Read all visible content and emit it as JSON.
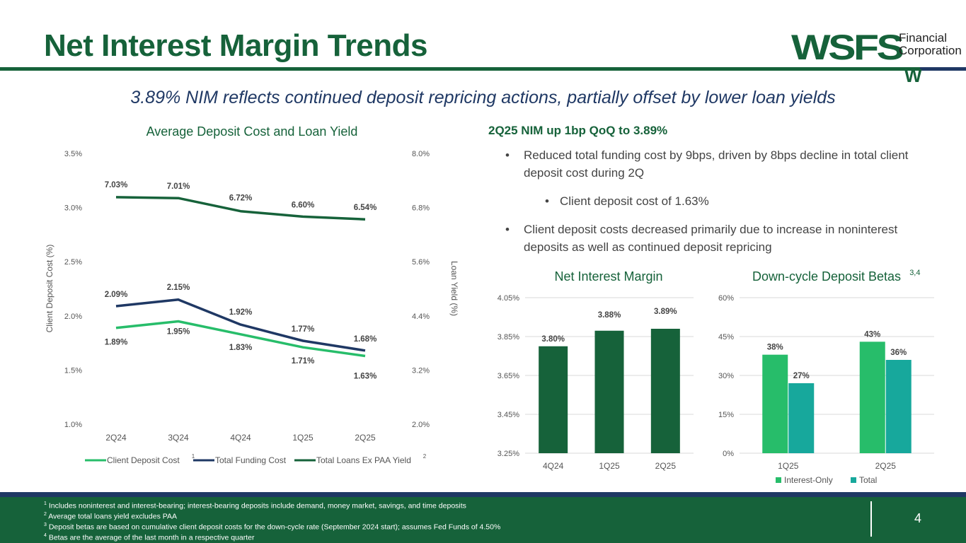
{
  "header": {
    "title": "Net Interest Margin Trends",
    "subtitle": "3.89% NIM reflects continued deposit repricing actions, partially offset by lower loan yields",
    "logo": {
      "brand": "WSFS",
      "line1": "Financial",
      "line2": "Corporation",
      "mark": "W"
    }
  },
  "colors": {
    "dark_green": "#16623a",
    "light_green": "#27bd6a",
    "navy": "#1f3864",
    "teal": "#17a89c"
  },
  "chart_data": [
    {
      "type": "line",
      "title": "Average Deposit Cost and Loan Yield",
      "categories": [
        "2Q24",
        "3Q24",
        "4Q24",
        "1Q25",
        "2Q25"
      ],
      "ylabel": "Client Deposit Cost (%)",
      "y2label": "Loan Yield (%)",
      "ylim": [
        1.0,
        3.5
      ],
      "y_ticks": [
        "1.0%",
        "1.5%",
        "2.0%",
        "2.5%",
        "3.0%",
        "3.5%"
      ],
      "y2lim": [
        2.0,
        8.0
      ],
      "y2_ticks": [
        "2.0%",
        "3.2%",
        "4.4%",
        "5.6%",
        "6.8%",
        "8.0%"
      ],
      "legend_position": "bottom",
      "series": [
        {
          "name": "Client Deposit Cost",
          "sup": "1",
          "axis": "left",
          "color": "#27bd6a",
          "values": [
            1.89,
            1.95,
            1.83,
            1.71,
            1.63
          ],
          "labels": [
            "1.89%",
            "1.95%",
            "1.83%",
            "1.71%",
            "1.63%"
          ]
        },
        {
          "name": "Total Funding Cost",
          "sup": "",
          "axis": "left",
          "color": "#1f3864",
          "values": [
            2.09,
            2.15,
            1.92,
            1.77,
            1.68
          ],
          "labels": [
            "2.09%",
            "2.15%",
            "1.92%",
            "1.77%",
            "1.68%"
          ]
        },
        {
          "name": "Total Loans Ex PAA Yield",
          "sup": "2",
          "axis": "right",
          "color": "#16623a",
          "values": [
            7.03,
            7.01,
            6.72,
            6.6,
            6.54
          ],
          "labels": [
            "7.03%",
            "7.01%",
            "6.72%",
            "6.60%",
            "6.54%"
          ]
        }
      ]
    },
    {
      "type": "bar",
      "title": "Net Interest Margin",
      "categories": [
        "4Q24",
        "1Q25",
        "2Q25"
      ],
      "ylim": [
        3.25,
        4.05
      ],
      "y_ticks": [
        "3.25%",
        "3.45%",
        "3.65%",
        "3.85%",
        "4.05%"
      ],
      "series": [
        {
          "name": "",
          "color": "#16623a",
          "values": [
            3.8,
            3.88,
            3.89
          ],
          "labels": [
            "3.80%",
            "3.88%",
            "3.89%"
          ]
        }
      ]
    },
    {
      "type": "bar",
      "title": "Down-cycle Deposit Betas",
      "title_sup": "3,4",
      "categories": [
        "1Q25",
        "2Q25"
      ],
      "ylim": [
        0,
        60
      ],
      "y_ticks": [
        "0%",
        "15%",
        "30%",
        "45%",
        "60%"
      ],
      "legend_position": "bottom",
      "series": [
        {
          "name": "Interest-Only",
          "color": "#27bd6a",
          "values": [
            38,
            43
          ],
          "labels": [
            "38%",
            "43%"
          ]
        },
        {
          "name": "Total",
          "color": "#17a89c",
          "values": [
            27,
            36
          ],
          "labels": [
            "27%",
            "36%"
          ]
        }
      ]
    }
  ],
  "commentary": {
    "heading": "2Q25 NIM up 1bp QoQ to 3.89%",
    "bullet1": "Reduced total funding cost by 9bps, driven by 8bps decline in total client deposit cost during 2Q",
    "sub1": "Client deposit cost of 1.63%",
    "bullet2": "Client deposit costs decreased primarily due to increase in noninterest deposits as well as continued deposit repricing"
  },
  "footer": {
    "notes": [
      {
        "sup": "1",
        "text": "Includes noninterest and interest-bearing; interest-bearing deposits include demand, money market, savings, and time deposits"
      },
      {
        "sup": "2",
        "text": "Average total loans yield excludes PAA"
      },
      {
        "sup": "3",
        "text": "Deposit betas are based on cumulative client deposit costs for the down-cycle rate (September 2024 start); assumes Fed Funds of 4.50%"
      },
      {
        "sup": "4",
        "text": "Betas are the average of the last month in a respective quarter"
      }
    ],
    "page_number": "4"
  }
}
